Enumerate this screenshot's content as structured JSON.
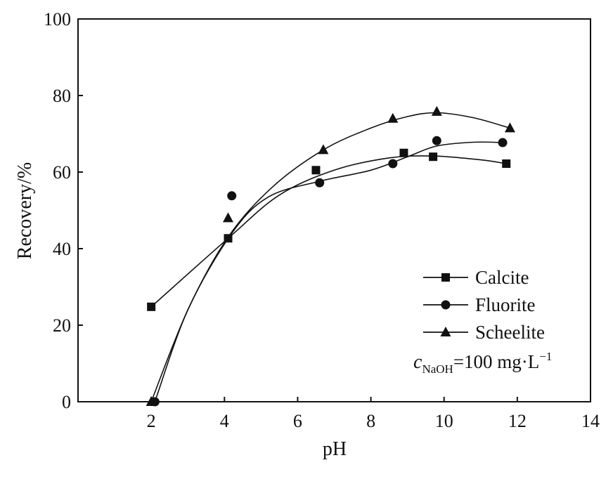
{
  "chart_data": {
    "type": "scatter",
    "title": "",
    "xlabel": "pH",
    "ylabel": "Recovery/%",
    "xlim": [
      0,
      14
    ],
    "ylim": [
      0,
      100
    ],
    "xticks": [
      2,
      4,
      6,
      8,
      10,
      12,
      14
    ],
    "yticks": [
      0,
      20,
      40,
      60,
      80,
      100
    ],
    "xtick_labels": [
      "2",
      "4",
      "6",
      "8",
      "10",
      "12",
      "14"
    ],
    "ytick_labels": [
      "0",
      "20",
      "40",
      "60",
      "80",
      "100"
    ],
    "grid": false,
    "legend_position": "bottom-right",
    "series": [
      {
        "name": "Calcite",
        "marker": "square",
        "color": "#111111",
        "x": [
          2.0,
          4.1,
          6.5,
          8.9,
          9.7,
          11.7
        ],
        "y": [
          24.8,
          42.7,
          60.5,
          65.0,
          64.0,
          62.2
        ],
        "fit_curve": [
          [
            2.0,
            24.8
          ],
          [
            4.1,
            42.7
          ],
          [
            5.5,
            54.0
          ],
          [
            7.0,
            60.5
          ],
          [
            8.5,
            63.7
          ],
          [
            9.7,
            64.2
          ],
          [
            11.0,
            63.2
          ],
          [
            11.7,
            62.2
          ]
        ]
      },
      {
        "name": "Fluorite",
        "marker": "circle",
        "color": "#111111",
        "x": [
          2.1,
          4.2,
          6.6,
          8.6,
          9.8,
          11.6
        ],
        "y": [
          0.0,
          53.8,
          57.2,
          62.2,
          68.2,
          67.7
        ],
        "fit_curve": [
          [
            2.1,
            0.0
          ],
          [
            3.0,
            24.0
          ],
          [
            4.2,
            44.0
          ],
          [
            5.2,
            53.5
          ],
          [
            6.6,
            57.6
          ],
          [
            8.0,
            60.5
          ],
          [
            9.0,
            64.0
          ],
          [
            9.8,
            66.8
          ],
          [
            10.8,
            67.8
          ],
          [
            11.6,
            67.7
          ]
        ]
      },
      {
        "name": "Scheelite",
        "marker": "triangle",
        "color": "#111111",
        "x": [
          2.0,
          4.1,
          6.7,
          8.6,
          9.8,
          11.8
        ],
        "y": [
          0.0,
          48.0,
          65.8,
          74.0,
          75.8,
          71.5
        ],
        "fit_curve": [
          [
            2.0,
            0.0
          ],
          [
            3.0,
            24.0
          ],
          [
            4.1,
            43.0
          ],
          [
            5.3,
            56.0
          ],
          [
            6.7,
            65.8
          ],
          [
            8.0,
            71.5
          ],
          [
            9.0,
            74.5
          ],
          [
            9.8,
            75.5
          ],
          [
            10.8,
            74.2
          ],
          [
            11.8,
            71.5
          ]
        ]
      }
    ],
    "annotation": {
      "symbol": "c",
      "subscript": "NaOH",
      "text": "=100 mg·L",
      "superscript": "−1"
    }
  }
}
